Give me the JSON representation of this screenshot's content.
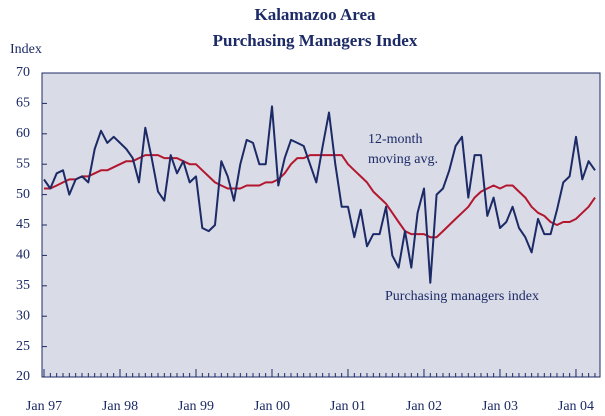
{
  "chart_data": {
    "type": "line",
    "title": "Kalamazoo Area",
    "subtitle": "Purchasing Managers Index",
    "y_label": "Index",
    "annotations": [
      "12-month",
      "moving avg.",
      "Purchasing managers index"
    ],
    "categories": [
      "Jan 97",
      null,
      null,
      null,
      null,
      null,
      null,
      null,
      null,
      null,
      null,
      null,
      "Jan 98",
      null,
      null,
      null,
      null,
      null,
      null,
      null,
      null,
      null,
      null,
      null,
      "Jan 99",
      null,
      null,
      null,
      null,
      null,
      null,
      null,
      null,
      null,
      null,
      null,
      "Jan 00",
      null,
      null,
      null,
      null,
      null,
      null,
      null,
      null,
      null,
      null,
      null,
      "Jan 01",
      null,
      null,
      null,
      null,
      null,
      null,
      null,
      null,
      null,
      null,
      null,
      "Jan 02",
      null,
      null,
      null,
      null,
      null,
      null,
      null,
      null,
      null,
      null,
      null,
      "Jan 03",
      null,
      null,
      null,
      null,
      null,
      null,
      null,
      null,
      null,
      null,
      null,
      "Jan 04",
      null,
      null,
      null
    ],
    "series": [
      {
        "name": "Purchasing managers index",
        "color": "#1c2a66",
        "values": [
          52.5,
          51,
          53.5,
          54,
          50,
          52.5,
          53,
          52,
          57.5,
          60.5,
          58.5,
          59.5,
          58.5,
          57.5,
          56,
          52,
          61,
          56,
          50.5,
          49,
          56.5,
          53.5,
          55.5,
          52,
          53,
          44.5,
          44,
          45,
          55.5,
          53,
          49,
          55,
          59,
          58.5,
          55,
          55,
          64.5,
          51.5,
          56,
          59,
          58.5,
          58,
          55,
          52,
          58,
          63.5,
          55,
          48,
          48,
          43,
          47.5,
          41.5,
          43.5,
          43.5,
          48,
          40,
          38,
          44,
          38,
          47,
          51,
          35.5,
          50,
          51,
          54,
          58,
          59.5,
          49.5,
          56.5,
          56.5,
          46.5,
          49.5,
          44.5,
          45.5,
          48,
          44.5,
          43,
          40.5,
          46,
          43.5,
          43.5,
          47.5,
          52,
          53,
          59.5,
          52.5,
          55.5,
          54
        ]
      },
      {
        "name": "12-month moving avg.",
        "color": "#b3172f",
        "values": [
          51,
          51,
          51.5,
          52,
          52.5,
          52.5,
          53,
          53,
          53.5,
          54,
          54,
          54.5,
          55,
          55.5,
          55.5,
          56,
          56.5,
          56.5,
          56.5,
          56,
          56,
          56,
          55.5,
          55,
          55,
          54,
          53,
          52,
          51.5,
          51,
          51,
          51,
          51.5,
          51.5,
          51.5,
          52,
          52,
          52.5,
          53.5,
          55,
          56,
          56,
          56.5,
          56.5,
          56.5,
          56.5,
          56.5,
          56.5,
          55,
          54,
          53,
          52,
          50.5,
          49.5,
          48.5,
          47,
          45.5,
          44,
          43.5,
          43.5,
          43.5,
          43,
          43,
          44,
          45,
          46,
          47,
          48,
          49.5,
          50.5,
          51,
          51.5,
          51,
          51.5,
          51.5,
          50.5,
          49.5,
          48,
          47,
          46.5,
          45.5,
          45,
          45.5,
          45.5,
          46,
          47,
          48,
          49.5
        ]
      }
    ],
    "ylim": [
      20,
      70
    ],
    "yticks": [
      20,
      25,
      30,
      35,
      40,
      45,
      50,
      55,
      60,
      65,
      70
    ],
    "background": "#d9dbe7"
  }
}
